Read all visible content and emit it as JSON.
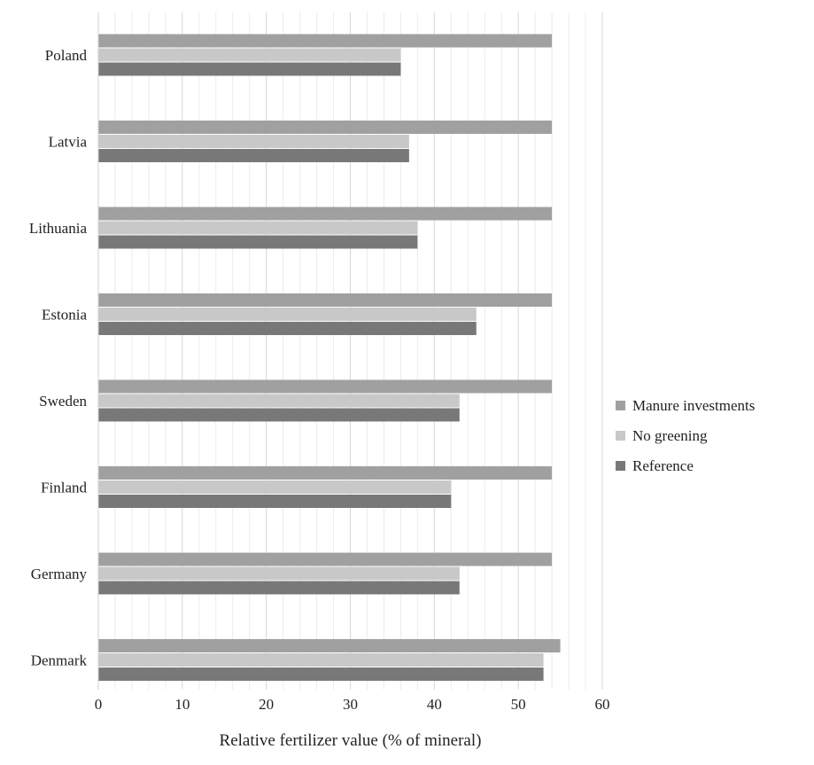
{
  "chart_data": {
    "type": "bar",
    "orientation": "horizontal",
    "categories": [
      "Poland",
      "Latvia",
      "Lithuania",
      "Estonia",
      "Sweden",
      "Finland",
      "Germany",
      "Denmark"
    ],
    "series": [
      {
        "name": "Manure investments",
        "color": "#a0a0a0",
        "values": [
          54,
          54,
          54,
          54,
          54,
          54,
          54,
          55
        ]
      },
      {
        "name": "No greening",
        "color": "#c8c8c8",
        "values": [
          36,
          37,
          38,
          45,
          43,
          42,
          43,
          53
        ]
      },
      {
        "name": "Reference",
        "color": "#787878",
        "values": [
          36,
          37,
          38,
          45,
          43,
          42,
          43,
          53
        ]
      }
    ],
    "xlabel": "Relative fertilizer value (% of mineral)",
    "ylabel": "",
    "xlim": [
      0,
      60
    ],
    "xticks": [
      0,
      10,
      20,
      30,
      40,
      50,
      60
    ],
    "minor_gridlines_step": 2,
    "grid": true,
    "legend_position": "right"
  }
}
